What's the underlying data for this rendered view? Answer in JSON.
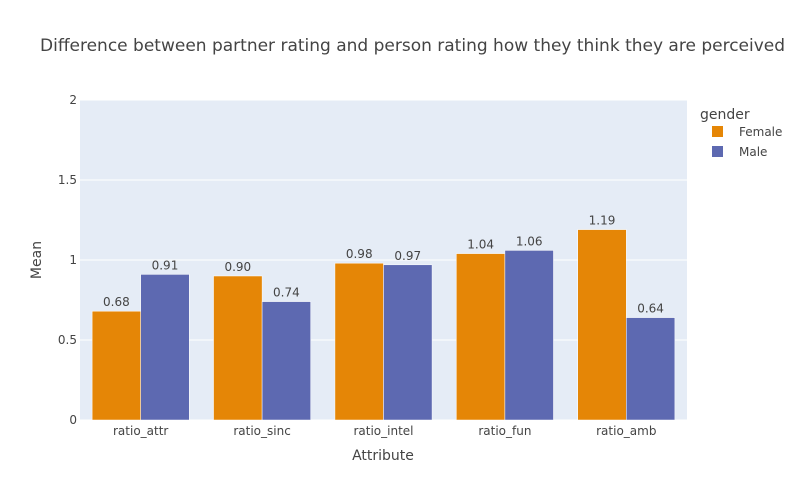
{
  "chart_data": {
    "type": "bar",
    "title": "Difference between partner rating and person rating how they think they are perceived",
    "xlabel": "Attribute",
    "ylabel": "Mean",
    "categories": [
      "ratio_attr",
      "ratio_sinc",
      "ratio_intel",
      "ratio_fun",
      "ratio_amb"
    ],
    "ylim": [
      0,
      2
    ],
    "yticks": [
      0,
      0.5,
      1,
      1.5,
      2
    ],
    "ytick_labels": [
      "0",
      "0.5",
      "1",
      "1.5",
      "2"
    ],
    "grid": true,
    "legend": {
      "title": "gender",
      "position": "top-right"
    },
    "series": [
      {
        "name": "Female",
        "color": "#E58606",
        "values": [
          0.68,
          0.9,
          0.98,
          1.04,
          1.19
        ],
        "labels": [
          "0.68",
          "0.90",
          "0.98",
          "1.04",
          "1.19"
        ]
      },
      {
        "name": "Male",
        "color": "#5D69B1",
        "values": [
          0.91,
          0.74,
          0.97,
          1.06,
          0.64
        ],
        "labels": [
          "0.91",
          "0.74",
          "0.97",
          "1.06",
          "0.64"
        ]
      }
    ]
  }
}
